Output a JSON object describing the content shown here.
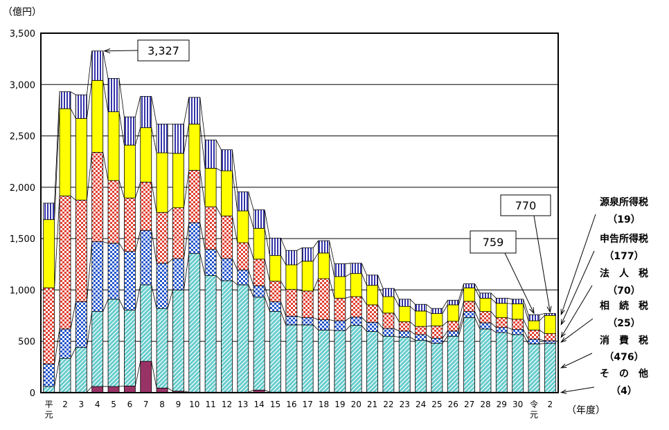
{
  "chart_data": {
    "type": "bar",
    "stacked": true,
    "unit_label": "（億円）",
    "x_unit_label": "（年度）",
    "ylim": [
      0,
      3500
    ],
    "yticks": [
      "0",
      "500",
      "1,000",
      "1,500",
      "2,000",
      "2,500",
      "3,000",
      "3,500"
    ],
    "ytick_values": [
      0,
      500,
      1000,
      1500,
      2000,
      2500,
      3000,
      3500
    ],
    "categories": [
      {
        "top": "平",
        "bottom": "元"
      },
      {
        "top": "2",
        "bottom": ""
      },
      {
        "top": "3",
        "bottom": ""
      },
      {
        "top": "4",
        "bottom": ""
      },
      {
        "top": "5",
        "bottom": ""
      },
      {
        "top": "6",
        "bottom": ""
      },
      {
        "top": "7",
        "bottom": ""
      },
      {
        "top": "8",
        "bottom": ""
      },
      {
        "top": "9",
        "bottom": ""
      },
      {
        "top": "10",
        "bottom": ""
      },
      {
        "top": "11",
        "bottom": ""
      },
      {
        "top": "12",
        "bottom": ""
      },
      {
        "top": "13",
        "bottom": ""
      },
      {
        "top": "14",
        "bottom": ""
      },
      {
        "top": "15",
        "bottom": ""
      },
      {
        "top": "16",
        "bottom": ""
      },
      {
        "top": "17",
        "bottom": ""
      },
      {
        "top": "18",
        "bottom": ""
      },
      {
        "top": "19",
        "bottom": ""
      },
      {
        "top": "20",
        "bottom": ""
      },
      {
        "top": "21",
        "bottom": ""
      },
      {
        "top": "22",
        "bottom": ""
      },
      {
        "top": "23",
        "bottom": ""
      },
      {
        "top": "24",
        "bottom": ""
      },
      {
        "top": "25",
        "bottom": ""
      },
      {
        "top": "26",
        "bottom": ""
      },
      {
        "top": "27",
        "bottom": ""
      },
      {
        "top": "28",
        "bottom": ""
      },
      {
        "top": "29",
        "bottom": ""
      },
      {
        "top": "30",
        "bottom": ""
      },
      {
        "top": "令",
        "bottom": "元"
      },
      {
        "top": "2",
        "bottom": ""
      }
    ],
    "series": [
      {
        "name": "その他",
        "color": "#993366",
        "pattern": "solid",
        "values": [
          5,
          5,
          5,
          60,
          60,
          65,
          305,
          45,
          15,
          5,
          5,
          5,
          5,
          25,
          5,
          5,
          5,
          5,
          5,
          5,
          5,
          5,
          5,
          5,
          5,
          5,
          5,
          5,
          5,
          5,
          5,
          4
        ]
      },
      {
        "name": "消費税",
        "color": "#66cccc",
        "pattern": "diagonal",
        "values": [
          55,
          330,
          435,
          730,
          850,
          740,
          745,
          775,
          985,
          1350,
          1135,
          1085,
          1045,
          905,
          785,
          655,
          655,
          605,
          600,
          650,
          590,
          545,
          535,
          505,
          475,
          545,
          725,
          615,
          580,
          560,
          470,
          476
        ]
      },
      {
        "name": "相続税",
        "color": "#3366cc",
        "pattern": "checker",
        "values": [
          220,
          285,
          445,
          680,
          545,
          570,
          530,
          440,
          305,
          300,
          255,
          215,
          145,
          110,
          95,
          85,
          70,
          100,
          95,
          80,
          90,
          75,
          60,
          55,
          50,
          50,
          60,
          60,
          50,
          50,
          45,
          25
        ]
      },
      {
        "name": "法人税",
        "color": "#e04030",
        "pattern": "checker",
        "values": [
          740,
          1295,
          990,
          870,
          610,
          520,
          470,
          495,
          495,
          510,
          415,
          415,
          265,
          260,
          200,
          260,
          260,
          400,
          220,
          200,
          170,
          150,
          90,
          80,
          120,
          95,
          100,
          110,
          95,
          100,
          90,
          70
        ]
      },
      {
        "name": "申告所得税",
        "color": "#ffff00",
        "pattern": "solid",
        "values": [
          665,
          850,
          795,
          700,
          670,
          515,
          530,
          580,
          530,
          450,
          375,
          440,
          310,
          300,
          250,
          240,
          290,
          250,
          210,
          225,
          190,
          160,
          150,
          150,
          120,
          160,
          130,
          130,
          140,
          150,
          90,
          177
        ]
      },
      {
        "name": "源泉所得税",
        "color": "#3333aa",
        "pattern": "stripes",
        "values": [
          160,
          165,
          230,
          287,
          325,
          275,
          305,
          280,
          285,
          260,
          275,
          205,
          185,
          180,
          170,
          140,
          130,
          120,
          125,
          100,
          100,
          80,
          70,
          65,
          50,
          45,
          40,
          50,
          50,
          45,
          59,
          19
        ]
      }
    ],
    "callouts": [
      {
        "text": "3,327",
        "bar_index": 3
      },
      {
        "text": "759",
        "bar_index": 30
      },
      {
        "text": "770",
        "bar_index": 31
      }
    ],
    "legend": [
      {
        "name": "源泉所得税",
        "value": "（19）"
      },
      {
        "name": "申告所得税",
        "value": "（177）"
      },
      {
        "name": "法　人　税",
        "value": "（70）"
      },
      {
        "name": "相　続　税",
        "value": "（25）"
      },
      {
        "name": "消　費　税",
        "value": "（476）"
      },
      {
        "name": "そ　の　他",
        "value": "（4）"
      }
    ]
  }
}
